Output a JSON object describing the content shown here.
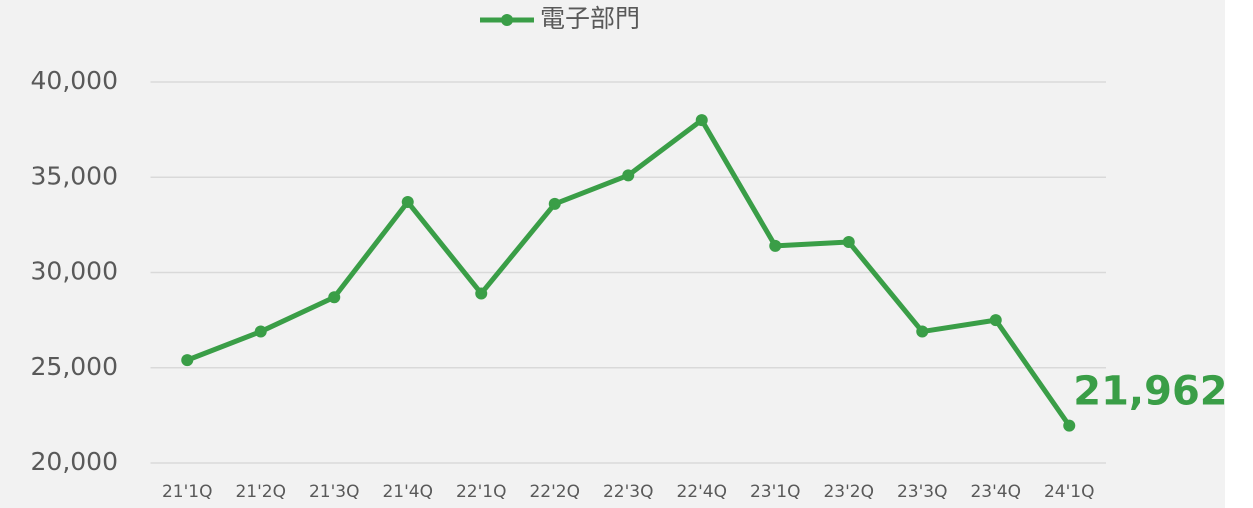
{
  "chart_data": {
    "type": "line",
    "categories": [
      "21'1Q",
      "21'2Q",
      "21'3Q",
      "21'4Q",
      "22'1Q",
      "22'2Q",
      "22'3Q",
      "22'4Q",
      "23'1Q",
      "23'2Q",
      "23'3Q",
      "23'4Q",
      "24'1Q"
    ],
    "series": [
      {
        "name": "電子部門",
        "color": "#3a9e47",
        "values": [
          25400,
          26900,
          28700,
          33700,
          28900,
          33600,
          35100,
          38000,
          31400,
          31600,
          26900,
          27500,
          21962
        ],
        "value_labels": [
          null,
          null,
          null,
          null,
          null,
          null,
          null,
          null,
          null,
          null,
          null,
          null,
          "21,962"
        ]
      }
    ],
    "ylim": [
      20000,
      40000
    ],
    "yticks": [
      {
        "value": 20000,
        "label": "20,000"
      },
      {
        "value": 25000,
        "label": "25,000"
      },
      {
        "value": 30000,
        "label": "30,000"
      },
      {
        "value": 35000,
        "label": "35,000"
      },
      {
        "value": 40000,
        "label": "40,000"
      }
    ],
    "grid": true,
    "legend": "top"
  }
}
